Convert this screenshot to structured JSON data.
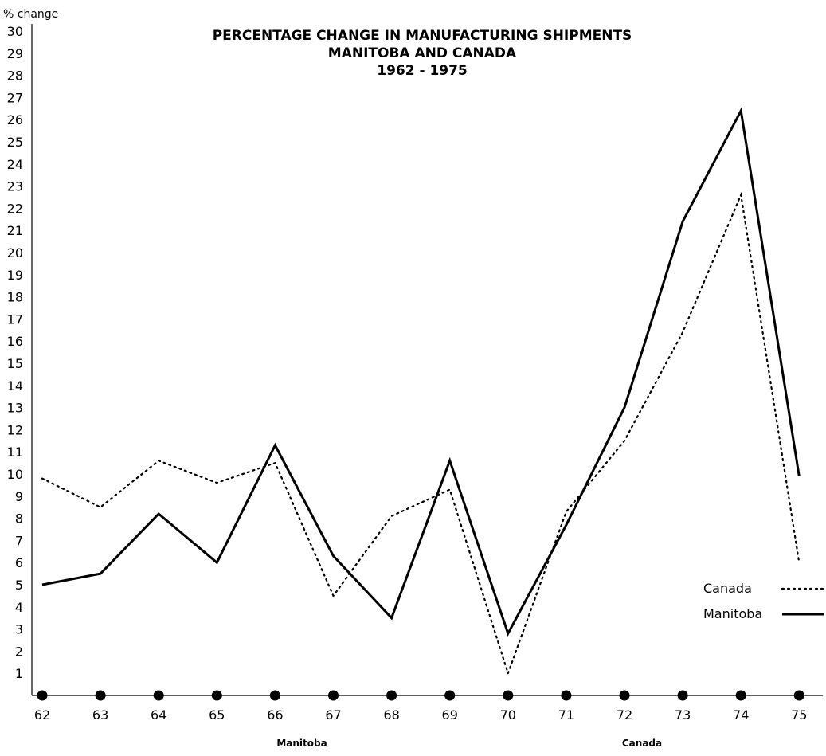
{
  "chart_data": {
    "type": "line",
    "title": [
      "PERCENTAGE CHANGE IN MANUFACTURING SHIPMENTS",
      "MANITOBA AND CANADA",
      "1962 - 1975"
    ],
    "ylabel": "% change",
    "ylim": [
      0,
      30
    ],
    "yticks": [
      "1",
      "2",
      "3",
      "4",
      "5",
      "6",
      "7",
      "8",
      "9",
      "10",
      "11",
      "12",
      "13",
      "14",
      "15",
      "16",
      "17",
      "18",
      "19",
      "20",
      "21",
      "22",
      "23",
      "24",
      "25",
      "26",
      "27",
      "28",
      "29",
      "30"
    ],
    "categories": [
      "62",
      "63",
      "64",
      "65",
      "66",
      "67",
      "68",
      "69",
      "70",
      "71",
      "72",
      "73",
      "74",
      "75"
    ],
    "series": [
      {
        "name": "Canada",
        "style": "dotted",
        "color": "#000000",
        "values": [
          9.8,
          8.5,
          10.6,
          9.6,
          10.5,
          4.5,
          8.1,
          9.3,
          1.0,
          8.3,
          11.5,
          16.4,
          22.6,
          6.0
        ]
      },
      {
        "name": "Manitoba",
        "style": "solid",
        "color": "#000000",
        "values": [
          5.0,
          5.5,
          8.2,
          6.0,
          11.3,
          6.3,
          3.5,
          10.6,
          2.8,
          7.7,
          13.0,
          21.4,
          26.4,
          9.9
        ]
      }
    ],
    "legend": "right",
    "grid": false,
    "footer_labels": [
      "Manitoba",
      "Canada"
    ]
  }
}
